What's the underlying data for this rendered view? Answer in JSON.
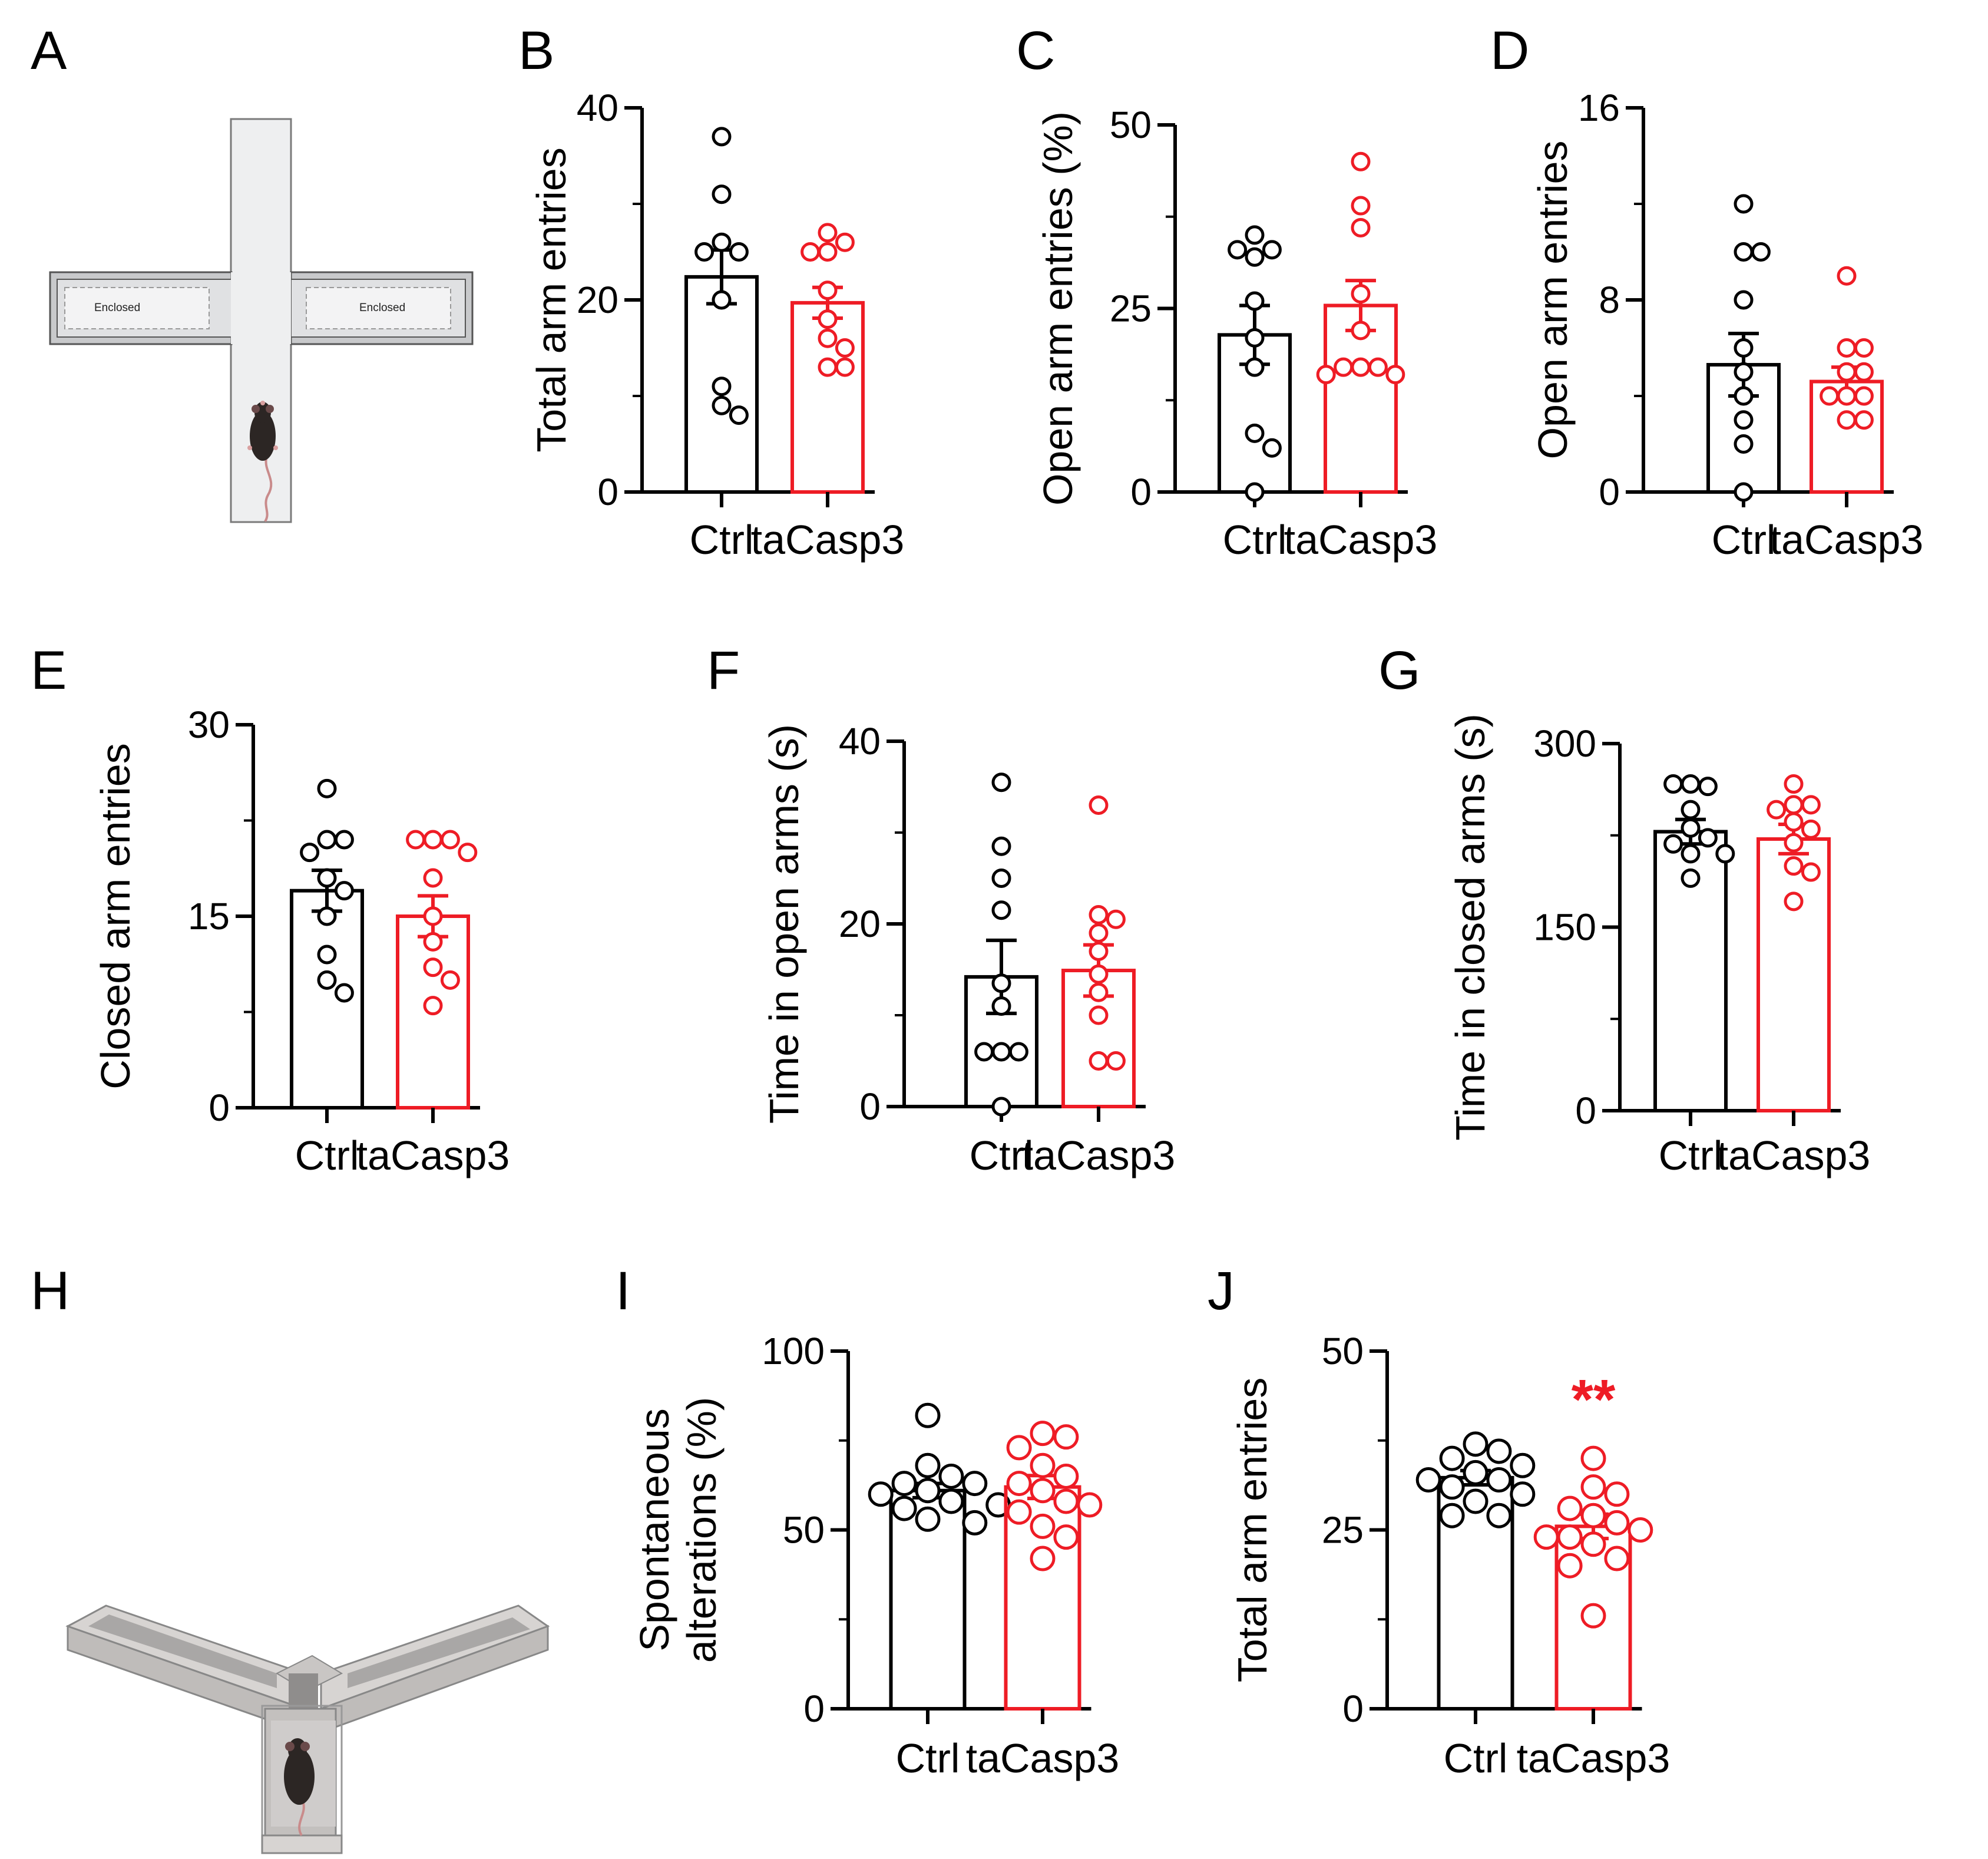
{
  "figure": {
    "panel_letters": [
      "A",
      "B",
      "C",
      "D",
      "E",
      "F",
      "G",
      "H",
      "I",
      "J"
    ],
    "colors": {
      "ctrl": "#000000",
      "taCasp3": "#ee1c25",
      "axis": "#000000"
    }
  },
  "schematic_A": {
    "enclosed_left": "Enclosed",
    "enclosed_right": "Enclosed"
  },
  "chart_data": [
    {
      "panel": "B",
      "type": "bar",
      "ylabel": "Total arm entries",
      "categories": [
        "Ctrl",
        "taCasp3"
      ],
      "ylim": [
        0,
        40
      ],
      "yticks": [
        0,
        20,
        40
      ],
      "minor": [
        10,
        30
      ],
      "means": [
        22.4,
        19.7
      ],
      "sem": [
        2.8,
        1.6
      ],
      "points": [
        [
          37,
          31,
          26,
          25,
          25,
          20,
          11,
          9,
          8
        ],
        [
          27,
          26,
          25,
          25,
          21,
          18,
          16,
          15,
          13,
          13
        ]
      ],
      "significance": ""
    },
    {
      "panel": "C",
      "type": "bar",
      "ylabel": "Open arm entries (%)",
      "categories": [
        "Ctrl",
        "taCasp3"
      ],
      "ylim": [
        0,
        50
      ],
      "yticks": [
        0,
        25,
        50
      ],
      "minor": [
        12.5,
        37.5
      ],
      "means": [
        21.4,
        25.4
      ],
      "sem": [
        4.0,
        3.4
      ],
      "points": [
        [
          35,
          33,
          32,
          33,
          26,
          21,
          17,
          8,
          6,
          0
        ],
        [
          45,
          39,
          36,
          27,
          22,
          17,
          17,
          17,
          16,
          16
        ]
      ],
      "significance": ""
    },
    {
      "panel": "D",
      "type": "bar",
      "ylabel": "Open arm entries",
      "categories": [
        "Ctrl",
        "taCasp3"
      ],
      "ylim": [
        0,
        16
      ],
      "yticks": [
        0,
        8,
        16
      ],
      "minor": [
        4,
        12
      ],
      "means": [
        5.3,
        4.6
      ],
      "sem": [
        1.3,
        0.6
      ],
      "points": [
        [
          12,
          10,
          10,
          8,
          6,
          5,
          4,
          3,
          2,
          0
        ],
        [
          9,
          6,
          6,
          5,
          5,
          4,
          4,
          4,
          3,
          3
        ]
      ],
      "significance": ""
    },
    {
      "panel": "E",
      "type": "bar",
      "ylabel": "Closed arm entries",
      "categories": [
        "Ctrl",
        "taCasp3"
      ],
      "ylim": [
        0,
        30
      ],
      "yticks": [
        0,
        15,
        30
      ],
      "minor": [
        7.5,
        22.5
      ],
      "means": [
        17,
        15
      ],
      "sem": [
        1.6,
        1.6
      ],
      "points": [
        [
          25,
          21,
          21,
          20,
          18,
          17,
          15,
          12,
          10,
          9
        ],
        [
          21,
          21,
          21,
          20,
          18,
          15,
          13,
          11,
          10,
          8
        ]
      ],
      "significance": ""
    },
    {
      "panel": "F",
      "type": "bar",
      "ylabel": "Time in open arms (s)",
      "categories": [
        "Ctrl",
        "taCasp3"
      ],
      "ylim": [
        0,
        40
      ],
      "yticks": [
        0,
        20,
        40
      ],
      "minor": [
        10,
        30
      ],
      "means": [
        14.2,
        14.9
      ],
      "sem": [
        4.0,
        2.8
      ],
      "points": [
        [
          35.5,
          28.5,
          25,
          21.5,
          13.5,
          11,
          6,
          6,
          6,
          0
        ],
        [
          33,
          21,
          20.5,
          19,
          17,
          14.5,
          12.5,
          10,
          5,
          5
        ]
      ],
      "significance": ""
    },
    {
      "panel": "G",
      "type": "bar",
      "ylabel": "Time in closed arms (s)",
      "categories": [
        "Ctrl",
        "taCasp3"
      ],
      "ylim": [
        0,
        300
      ],
      "yticks": [
        0,
        150,
        300
      ],
      "minor": [
        75,
        225
      ],
      "means": [
        228,
        222
      ],
      "sem": [
        10,
        12
      ],
      "points": [
        [
          267,
          265,
          267,
          246,
          231,
          223,
          218,
          210,
          210,
          190
        ],
        [
          267,
          250,
          250,
          246,
          236,
          230,
          219,
          200,
          195,
          171
        ]
      ],
      "significance": ""
    },
    {
      "panel": "I",
      "type": "bar",
      "ylabel": "Spontaneous alterations (%)",
      "categories": [
        "Ctrl",
        "taCasp3"
      ],
      "ylim": [
        0,
        100
      ],
      "yticks": [
        0,
        50,
        100
      ],
      "minor": [
        25,
        75
      ],
      "means": [
        61,
        62
      ],
      "sem": [
        2,
        3.2
      ],
      "points": [
        [
          82,
          68,
          65,
          63,
          63,
          61,
          60,
          58,
          57,
          56,
          53,
          52
        ],
        [
          77,
          76,
          73,
          68,
          65,
          63,
          61,
          58,
          57,
          55,
          51,
          48,
          42
        ]
      ],
      "significance": ""
    },
    {
      "panel": "J",
      "type": "bar",
      "ylabel": "Total arm entries",
      "categories": [
        "Ctrl",
        "taCasp3"
      ],
      "ylim": [
        0,
        50
      ],
      "yticks": [
        0,
        25,
        50
      ],
      "minor": [
        12.5,
        37.5
      ],
      "means": [
        32.3,
        25.5
      ],
      "sem": [
        1.0,
        1.7
      ],
      "points": [
        [
          37,
          36,
          35,
          34,
          33,
          32,
          32,
          31,
          30,
          29,
          27,
          27
        ],
        [
          35,
          31,
          30,
          28,
          27,
          26,
          25,
          24,
          24,
          23,
          21,
          20,
          13
        ]
      ],
      "significance": "**"
    }
  ]
}
